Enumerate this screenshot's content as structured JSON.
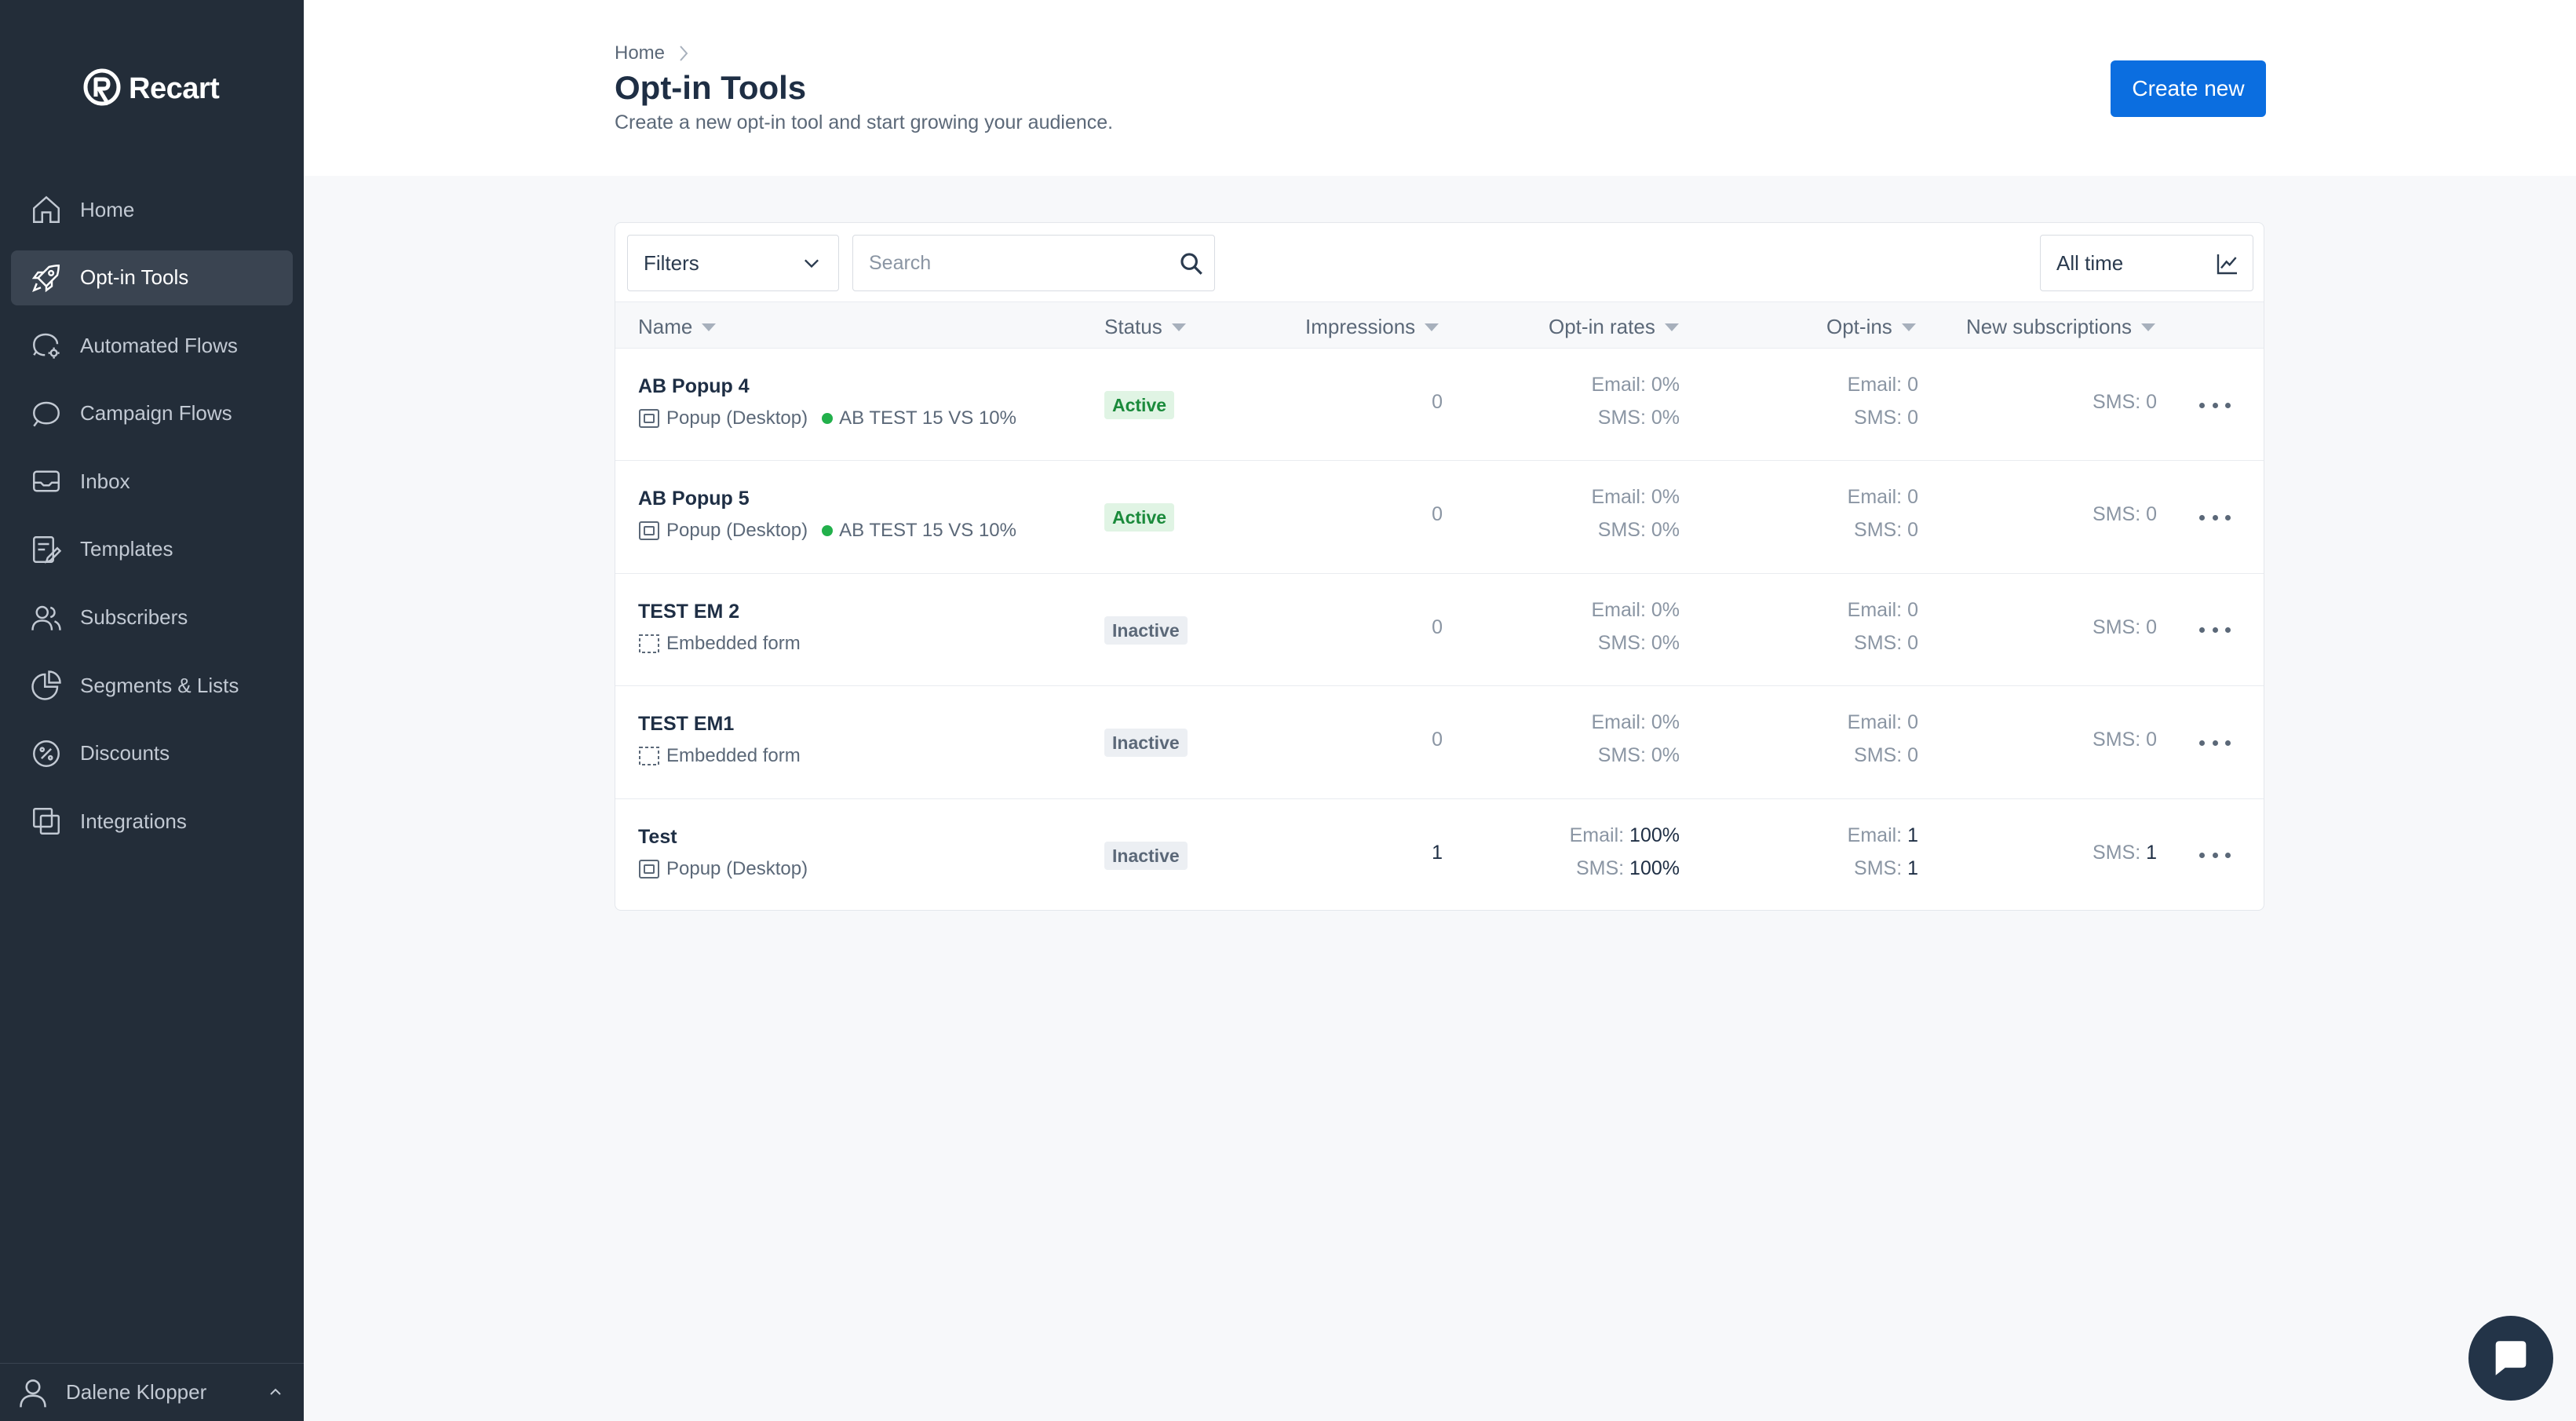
{
  "app": {
    "brand": "Recart"
  },
  "sidebar": {
    "items": [
      {
        "label": "Home",
        "icon": "home-icon",
        "active": false
      },
      {
        "label": "Opt-in Tools",
        "icon": "rocket-icon",
        "active": true
      },
      {
        "label": "Automated Flows",
        "icon": "chat-gear-icon",
        "active": false
      },
      {
        "label": "Campaign Flows",
        "icon": "chat-bubble-icon",
        "active": false
      },
      {
        "label": "Inbox",
        "icon": "inbox-icon",
        "active": false
      },
      {
        "label": "Templates",
        "icon": "template-edit-icon",
        "active": false
      },
      {
        "label": "Subscribers",
        "icon": "users-icon",
        "active": false
      },
      {
        "label": "Segments & Lists",
        "icon": "pie-chart-icon",
        "active": false
      },
      {
        "label": "Discounts",
        "icon": "percent-icon",
        "active": false
      },
      {
        "label": "Integrations",
        "icon": "integrations-icon",
        "active": false
      }
    ],
    "user": {
      "name": "Dalene Klopper"
    }
  },
  "header": {
    "breadcrumb": "Home",
    "title": "Opt-in Tools",
    "subtitle": "Create a new opt-in tool and start growing your audience.",
    "create_label": "Create new"
  },
  "toolbar": {
    "filters_label": "Filters",
    "search_placeholder": "Search",
    "range_label": "All time"
  },
  "table": {
    "columns": [
      "Name",
      "Status",
      "Impressions",
      "Opt-in rates",
      "Opt-ins",
      "New subscriptions"
    ],
    "rows": [
      {
        "name": "AB Popup 4",
        "type": "Popup (Desktop)",
        "type_icon": "popup-icon",
        "ab_test": "AB TEST 15 VS 10%",
        "status": "Active",
        "impressions": "0",
        "email_rate": "0%",
        "sms_rate": "0%",
        "email_optins": "0",
        "sms_optins": "0",
        "sms_subs": "0"
      },
      {
        "name": "AB Popup 5",
        "type": "Popup (Desktop)",
        "type_icon": "popup-icon",
        "ab_test": "AB TEST 15 VS 10%",
        "status": "Active",
        "impressions": "0",
        "email_rate": "0%",
        "sms_rate": "0%",
        "email_optins": "0",
        "sms_optins": "0",
        "sms_subs": "0"
      },
      {
        "name": "TEST EM 2",
        "type": "Embedded form",
        "type_icon": "embedded-form-icon",
        "ab_test": "",
        "status": "Inactive",
        "impressions": "0",
        "email_rate": "0%",
        "sms_rate": "0%",
        "email_optins": "0",
        "sms_optins": "0",
        "sms_subs": "0"
      },
      {
        "name": "TEST EM1",
        "type": "Embedded form",
        "type_icon": "embedded-form-icon",
        "ab_test": "",
        "status": "Inactive",
        "impressions": "0",
        "email_rate": "0%",
        "sms_rate": "0%",
        "email_optins": "0",
        "sms_optins": "0",
        "sms_subs": "0"
      },
      {
        "name": "Test",
        "type": "Popup (Desktop)",
        "type_icon": "popup-icon",
        "ab_test": "",
        "status": "Inactive",
        "impressions": "1",
        "email_rate": "100%",
        "sms_rate": "100%",
        "email_optins": "1",
        "sms_optins": "1",
        "sms_subs": "1",
        "highlight": true
      }
    ],
    "labels": {
      "email": "Email:",
      "sms": "SMS:"
    }
  },
  "colors": {
    "sidebar_bg": "#232d39",
    "accent": "#0b6ee0",
    "active_badge": "#1a8a3b",
    "ab_dot": "#22b04b"
  }
}
